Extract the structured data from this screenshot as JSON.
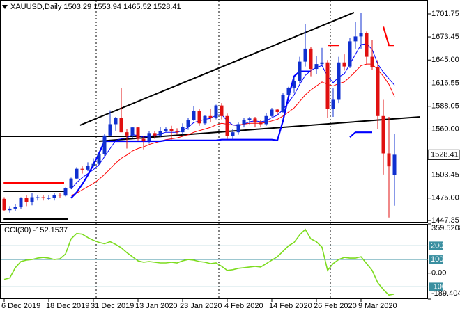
{
  "chart_data": [
    {
      "type": "candlestick",
      "title": "XAUUSD,Daily  1503.29 1553.94 1465.52 1528.41",
      "categories": [
        "6 Dec 2019",
        null,
        null,
        null,
        null,
        null,
        null,
        null,
        "18 Dec 2019",
        null,
        null,
        null,
        null,
        null,
        null,
        null,
        "31 Dec 2019",
        null,
        null,
        null,
        null,
        null,
        null,
        null,
        "13 Jan 2020",
        null,
        null,
        null,
        null,
        null,
        null,
        null,
        "23 Jan 2020",
        null,
        null,
        null,
        null,
        null,
        null,
        null,
        "4 Feb 2020",
        null,
        null,
        null,
        null,
        null,
        null,
        null,
        "14 Feb 2020",
        null,
        null,
        null,
        null,
        null,
        null,
        null,
        "26 Feb 2020",
        null,
        null,
        null,
        null,
        null,
        null,
        null,
        "9 Mar 2020",
        null,
        null,
        null,
        null,
        null,
        null
      ],
      "open": [
        1474,
        1460,
        1462,
        1464,
        1475,
        1470,
        1476,
        1476,
        1475,
        1475,
        1479,
        1478,
        1487,
        1499,
        1511,
        1510,
        1515,
        1517,
        1529,
        1552,
        1566,
        1574,
        1556,
        1552,
        1562,
        1548,
        1545,
        1555,
        1552,
        1557,
        1560,
        1557,
        1556,
        1563,
        1571,
        1582,
        1567,
        1576,
        1574,
        1589,
        1576,
        1551,
        1556,
        1566,
        1571,
        1573,
        1568,
        1566,
        1576,
        1584,
        1581,
        1602,
        1611,
        1619,
        1643,
        1659,
        1634,
        1640,
        1642,
        1585,
        1596,
        1642,
        1637,
        1668,
        1674,
        1678,
        1649,
        1636,
        1576,
        1530,
        1503.29
      ],
      "high": [
        1476,
        1465,
        1467,
        1476,
        1479,
        1481,
        1479,
        1479,
        1479,
        1481,
        1481,
        1488,
        1500,
        1513,
        1514,
        1519,
        1524,
        1530,
        1554,
        1583,
        1575,
        1611,
        1560,
        1563,
        1563,
        1551,
        1557,
        1557,
        1563,
        1562,
        1564,
        1561,
        1567,
        1574,
        1588,
        1585,
        1577,
        1585,
        1590,
        1592,
        1579,
        1560,
        1568,
        1574,
        1575,
        1575,
        1571,
        1580,
        1586,
        1585,
        1604,
        1612,
        1624,
        1649,
        1689,
        1661,
        1650,
        1660,
        1645,
        1610,
        1649,
        1652,
        1672,
        1692,
        1703,
        1680,
        1670,
        1645,
        1596,
        1575,
        1553.94
      ],
      "low": [
        1459,
        1457,
        1459,
        1462,
        1465,
        1466,
        1472,
        1472,
        1473,
        1472,
        1475,
        1477,
        1486,
        1498,
        1505,
        1508,
        1513,
        1516,
        1526,
        1552,
        1558,
        1556,
        1536,
        1549,
        1546,
        1535,
        1542,
        1548,
        1550,
        1556,
        1547,
        1553,
        1553,
        1559,
        1570,
        1564,
        1565,
        1569,
        1572,
        1572,
        1548,
        1547,
        1553,
        1562,
        1566,
        1562,
        1562,
        1564,
        1575,
        1578,
        1580,
        1600,
        1604,
        1616,
        1637,
        1625,
        1628,
        1638,
        1574,
        1575,
        1592,
        1632,
        1635,
        1659,
        1659,
        1640,
        1633,
        1560,
        1504,
        1451,
        1465.52
      ],
      "close": [
        1460,
        1462,
        1464,
        1475,
        1470,
        1476,
        1476,
        1475,
        1475,
        1479,
        1478,
        1487,
        1499,
        1511,
        1510,
        1515,
        1517,
        1529,
        1552,
        1566,
        1574,
        1556,
        1552,
        1562,
        1548,
        1545,
        1555,
        1552,
        1557,
        1560,
        1557,
        1556,
        1563,
        1571,
        1582,
        1567,
        1576,
        1574,
        1589,
        1576,
        1551,
        1556,
        1566,
        1571,
        1573,
        1568,
        1566,
        1576,
        1584,
        1581,
        1602,
        1611,
        1619,
        1643,
        1659,
        1634,
        1640,
        1642,
        1585,
        1596,
        1642,
        1637,
        1668,
        1674,
        1678,
        1649,
        1636,
        1576,
        1530,
        1514,
        1528.41
      ],
      "up_color": "#1030d0",
      "down_color": "#e01010",
      "series": [
        {
          "color": "#0000ff",
          "width": 1,
          "values": [
            null,
            null,
            null,
            null,
            null,
            null,
            null,
            null,
            null,
            null,
            null,
            null,
            1486,
            1494,
            1500,
            1505,
            1510,
            1516,
            1526,
            1536,
            1546,
            1548,
            1549,
            1553,
            1552,
            1550,
            1551,
            1552,
            1554,
            1556,
            1556,
            1556,
            1558,
            1562,
            1568,
            1570,
            1572,
            1573,
            1577,
            1578,
            1570,
            1565,
            1564,
            1566,
            1569,
            1570,
            1569,
            1570,
            1574,
            1577,
            1584,
            1593,
            1602,
            1615,
            1626,
            1632,
            1636,
            1638,
            1625,
            1617,
            1624,
            1628,
            1640,
            1652,
            1664,
            1665,
            1658,
            1640,
            1630,
            1622,
            1614
          ]
        },
        {
          "color": "#ff0000",
          "width": 1,
          "values": [
            null,
            null,
            null,
            null,
            null,
            null,
            null,
            null,
            null,
            null,
            null,
            null,
            1478,
            1481,
            1485,
            1489,
            1493,
            1498,
            1504,
            1511,
            1518,
            1524,
            1528,
            1533,
            1536,
            1538,
            1541,
            1543,
            1545,
            1547,
            1548,
            1549,
            1551,
            1553,
            1556,
            1558,
            1560,
            1562,
            1565,
            1567,
            1566,
            1565,
            1565,
            1566,
            1567,
            1567,
            1567,
            1568,
            1570,
            1572,
            1576,
            1581,
            1586,
            1594,
            1602,
            1608,
            1613,
            1618,
            1615,
            1613,
            1616,
            1618,
            1624,
            1631,
            1638,
            1640,
            1640,
            1633,
            1625,
            1615,
            1600
          ]
        },
        {
          "color": "#0000ff",
          "width": 2.2,
          "values": [
            null,
            null,
            null,
            null,
            null,
            null,
            null,
            null,
            null,
            null,
            null,
            null,
            1475,
            1482,
            1492,
            1503,
            1516,
            1530,
            1545,
            1545,
            1545,
            1545,
            1545,
            1545,
            1545,
            1545,
            1545,
            1545,
            1545,
            1546,
            1546,
            1546,
            1546,
            1546,
            1546,
            1546,
            1546,
            1546,
            1546,
            1547,
            1547,
            1547,
            1547,
            1547,
            1547,
            1547,
            1547,
            1547,
            1547,
            1546,
            1570,
            1600,
            1625,
            1631,
            1631,
            1631,
            null,
            null,
            null,
            null,
            null,
            null,
            1550,
            1556,
            1556,
            1556,
            1556,
            null,
            null,
            null,
            null
          ]
        },
        {
          "color": "#ff0000",
          "width": 2.2,
          "values": [
            null,
            null,
            null,
            null,
            null,
            null,
            null,
            null,
            null,
            null,
            null,
            null,
            null,
            null,
            null,
            null,
            null,
            null,
            null,
            null,
            null,
            null,
            null,
            null,
            null,
            null,
            null,
            null,
            null,
            null,
            null,
            null,
            null,
            null,
            null,
            null,
            null,
            null,
            null,
            null,
            null,
            null,
            null,
            null,
            null,
            null,
            null,
            null,
            null,
            null,
            null,
            null,
            null,
            null,
            null,
            null,
            null,
            null,
            1663,
            1663,
            1663,
            null,
            null,
            null,
            null,
            null,
            null,
            null,
            1686,
            1663,
            1663
          ]
        }
      ],
      "lines": [
        {
          "x": [
            13.6,
            62.75
          ],
          "y": [
            1564.7,
            1703.5
          ],
          "color": "#000000"
        },
        {
          "x": [
            -0.75,
            28
          ],
          "y": [
            1551,
            1551
          ],
          "color": "#000000"
        },
        {
          "x": [
            17,
            74.6
          ],
          "y": [
            1545,
            1575
          ],
          "color": "#000000"
        },
        {
          "x": [
            -0.1,
            10.75
          ],
          "y": [
            1493.6,
            1493.6
          ],
          "color": "#ff0000"
        },
        {
          "x": [
            -0.1,
            10.75
          ],
          "y": [
            1483.3,
            1483.3
          ],
          "color": "#000000"
        },
        {
          "x": [
            -0.1,
            11.4
          ],
          "y": [
            1449,
            1449
          ],
          "color": "#000000"
        }
      ],
      "last_price": 1528.41,
      "ylim": [
        1444.77,
        1717.17
      ],
      "yticks": [
        1701.75,
        1673.45,
        {
          "value": 1645,
          "label": "1645.00"
        },
        1616.55,
        1588.05,
        {
          "value": 1560,
          "label": "1560.00"
        },
        1503.45,
        {
          "value": 1475,
          "label": "1475.00"
        },
        1447.35
      ]
    },
    {
      "type": "line",
      "title": "CCI(30) -152.1537",
      "color": "#7ddc1f",
      "values": [
        -45,
        -35,
        40,
        85,
        95,
        100,
        110,
        115,
        110,
        100,
        105,
        140,
        250,
        290,
        285,
        260,
        240,
        225,
        215,
        230,
        210,
        185,
        150,
        120,
        90,
        80,
        85,
        80,
        75,
        75,
        80,
        75,
        90,
        100,
        95,
        85,
        80,
        70,
        75,
        50,
        20,
        25,
        35,
        40,
        45,
        50,
        45,
        70,
        95,
        120,
        160,
        200,
        225,
        280,
        320,
        250,
        230,
        190,
        20,
        70,
        100,
        115,
        110,
        110,
        120,
        70,
        20,
        -70,
        -120,
        -160,
        -152.1537
      ],
      "levels": [
        200,
        100,
        -100
      ],
      "level_color": "#3a8fa0",
      "ylim": [
        -189.4041,
        359.5208
      ],
      "yticks": [
        359.5208,
        {
          "value": 0,
          "label": "0.00"
        },
        -189.4041
      ]
    }
  ]
}
